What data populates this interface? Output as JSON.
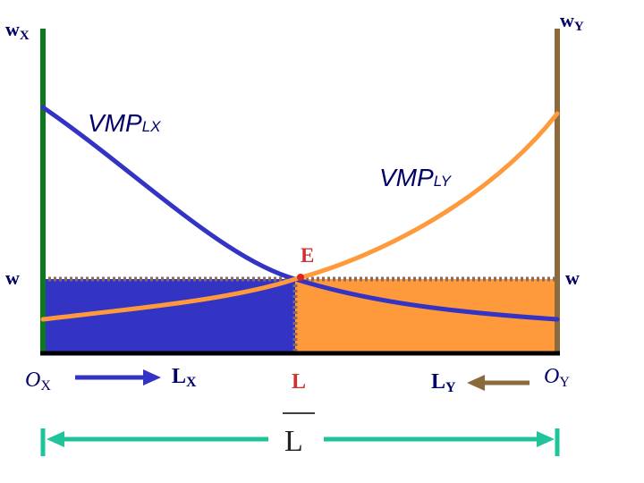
{
  "labels": {
    "wx_main": "w",
    "wx_sub": "X",
    "wy_main": "w",
    "wy_sub": "Y",
    "w_left": "w",
    "w_right": "w",
    "vmp_lx_main": "VMP",
    "vmp_lx_sub": "LX",
    "vmp_ly_main": "VMP",
    "vmp_ly_sub": "LY",
    "equilibrium": "E",
    "ox_main": "O",
    "ox_sub": "X",
    "oy_main": "O",
    "oy_sub": "Y",
    "lx_main": "L",
    "lx_sub": "X",
    "ly_main": "L",
    "ly_sub": "Y",
    "l_point": "L",
    "l_bar": "L"
  },
  "colors": {
    "left_axis": "#0b7a1a",
    "right_axis": "#8b6a3e",
    "vmp_lx_curve": "#3333c4",
    "vmp_ly_curve": "#ff9a3c",
    "left_fill": "#3333c4",
    "right_fill": "#ff9a3c",
    "dotted_lines": "#8b6a5e",
    "equilibrium_point": "#dd2222",
    "label_text": "#000066",
    "arrow_x": "#3333c4",
    "arrow_y": "#8b6a3e",
    "total_labor_arrow": "#1fc49a"
  }
}
